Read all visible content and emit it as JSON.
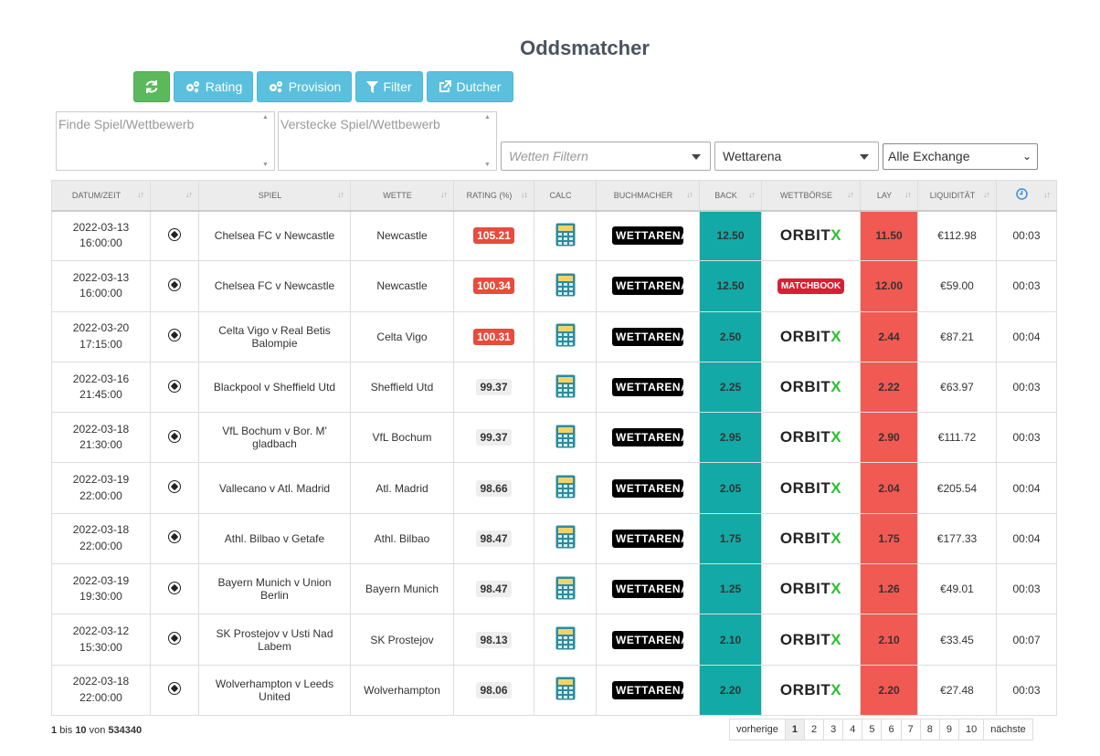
{
  "title": "Oddsmatcher",
  "toolbar": {
    "refresh_icon": "refresh-icon",
    "rating_label": "Rating",
    "provision_label": "Provision",
    "filter_label": "Filter",
    "dutcher_label": "Dutcher"
  },
  "filters": {
    "find_placeholder": "Finde Spiel/Wettbewerb",
    "hide_placeholder": "Verstecke Spiel/Wettbewerb",
    "bet_filter_placeholder": "Wetten Filtern",
    "bookmaker_selected": "Wettarena",
    "exchange_selected": "Alle Exchange"
  },
  "table": {
    "headers": {
      "datetime": "Datum/Zeit",
      "sport": "",
      "match": "Spiel",
      "bet": "Wette",
      "rating": "Rating (%)",
      "calc": "Calc",
      "bookmaker": "Buchmacher",
      "back": "Back",
      "exchange": "Wettbörse",
      "lay": "Lay",
      "liquidity": "Liquidität",
      "time": ""
    },
    "rows": [
      {
        "date": "2022-03-13",
        "time": "16:00:00",
        "match": "Chelsea FC v Newcastle",
        "bet": "Newcastle",
        "rating": "105.21",
        "highlight": true,
        "bookmaker": "WETTARENA",
        "back": "12.50",
        "exchange": "ORBITX",
        "lay": "11.50",
        "liquidity": "€112.98",
        "countdown": "00:03"
      },
      {
        "date": "2022-03-13",
        "time": "16:00:00",
        "match": "Chelsea FC v Newcastle",
        "bet": "Newcastle",
        "rating": "100.34",
        "highlight": true,
        "bookmaker": "WETTARENA",
        "back": "12.50",
        "exchange": "MATCHBOOK",
        "lay": "12.00",
        "liquidity": "€59.00",
        "countdown": "00:03"
      },
      {
        "date": "2022-03-20",
        "time": "17:15:00",
        "match": "Celta Vigo v Real Betis Balompie",
        "bet": "Celta Vigo",
        "rating": "100.31",
        "highlight": true,
        "bookmaker": "WETTARENA",
        "back": "2.50",
        "exchange": "ORBITX",
        "lay": "2.44",
        "liquidity": "€87.21",
        "countdown": "00:04"
      },
      {
        "date": "2022-03-16",
        "time": "21:45:00",
        "match": "Blackpool v Sheffield Utd",
        "bet": "Sheffield Utd",
        "rating": "99.37",
        "highlight": false,
        "bookmaker": "WETTARENA",
        "back": "2.25",
        "exchange": "ORBITX",
        "lay": "2.22",
        "liquidity": "€63.97",
        "countdown": "00:03"
      },
      {
        "date": "2022-03-18",
        "time": "21:30:00",
        "match": "VfL Bochum v Bor. M' gladbach",
        "bet": "VfL Bochum",
        "rating": "99.37",
        "highlight": false,
        "bookmaker": "WETTARENA",
        "back": "2.95",
        "exchange": "ORBITX",
        "lay": "2.90",
        "liquidity": "€111.72",
        "countdown": "00:03"
      },
      {
        "date": "2022-03-19",
        "time": "22:00:00",
        "match": "Vallecano v Atl. Madrid",
        "bet": "Atl. Madrid",
        "rating": "98.66",
        "highlight": false,
        "bookmaker": "WETTARENA",
        "back": "2.05",
        "exchange": "ORBITX",
        "lay": "2.04",
        "liquidity": "€205.54",
        "countdown": "00:04"
      },
      {
        "date": "2022-03-18",
        "time": "22:00:00",
        "match": "Athl. Bilbao v Getafe",
        "bet": "Athl. Bilbao",
        "rating": "98.47",
        "highlight": false,
        "bookmaker": "WETTARENA",
        "back": "1.75",
        "exchange": "ORBITX",
        "lay": "1.75",
        "liquidity": "€177.33",
        "countdown": "00:04"
      },
      {
        "date": "2022-03-19",
        "time": "19:30:00",
        "match": "Bayern Munich v Union Berlin",
        "bet": "Bayern Munich",
        "rating": "98.47",
        "highlight": false,
        "bookmaker": "WETTARENA",
        "back": "1.25",
        "exchange": "ORBITX",
        "lay": "1.26",
        "liquidity": "€49.01",
        "countdown": "00:03"
      },
      {
        "date": "2022-03-12",
        "time": "15:30:00",
        "match": "SK Prostejov v Usti Nad Labem",
        "bet": "SK Prostejov",
        "rating": "98.13",
        "highlight": false,
        "bookmaker": "WETTARENA",
        "back": "2.10",
        "exchange": "ORBITX",
        "lay": "2.10",
        "liquidity": "€33.45",
        "countdown": "00:07"
      },
      {
        "date": "2022-03-18",
        "time": "22:00:00",
        "match": "Wolverhampton v Leeds United",
        "bet": "Wolverhampton",
        "rating": "98.06",
        "highlight": false,
        "bookmaker": "WETTARENA",
        "back": "2.20",
        "exchange": "ORBITX",
        "lay": "2.20",
        "liquidity": "€27.48",
        "countdown": "00:03"
      }
    ]
  },
  "footer": {
    "range_from": "1",
    "range_mid": "bis",
    "range_to": "10",
    "range_of": "von",
    "total": "534340"
  },
  "pagination": {
    "prev": "vorherige",
    "pages": [
      "1",
      "2",
      "3",
      "4",
      "5",
      "6",
      "7",
      "8",
      "9",
      "10"
    ],
    "next": "nächste",
    "current": "1"
  }
}
